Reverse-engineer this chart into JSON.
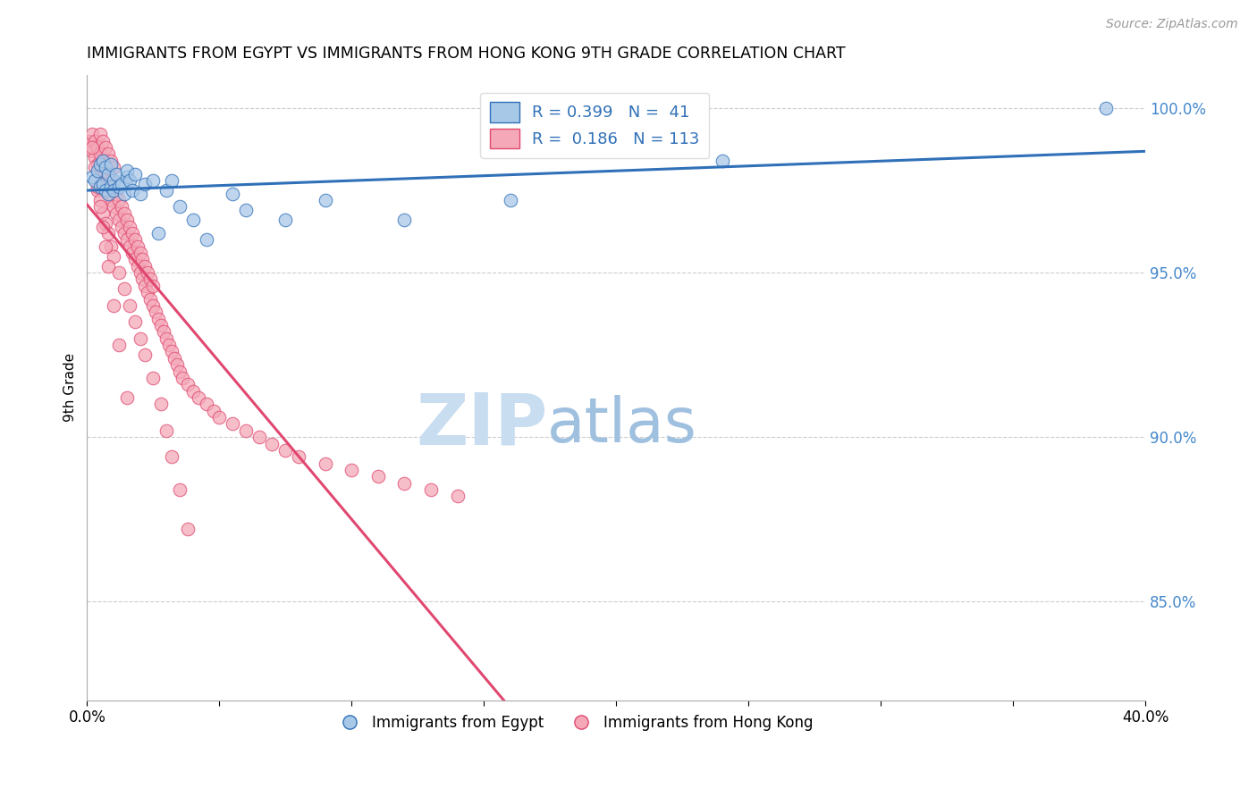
{
  "title": "IMMIGRANTS FROM EGYPT VS IMMIGRANTS FROM HONG KONG 9TH GRADE CORRELATION CHART",
  "source": "Source: ZipAtlas.com",
  "ylabel": "9th Grade",
  "ytick_labels": [
    "85.0%",
    "90.0%",
    "95.0%",
    "100.0%"
  ],
  "ytick_values": [
    0.85,
    0.9,
    0.95,
    1.0
  ],
  "xlim": [
    0.0,
    0.4
  ],
  "ylim": [
    0.82,
    1.01
  ],
  "color_egypt": "#a8c8e8",
  "color_hk": "#f4a8b8",
  "line_color_egypt": "#3070b8",
  "line_color_hk": "#e04870",
  "watermark_zip": "ZIP",
  "watermark_atlas": "atlas",
  "watermark_color_zip": "#c8ddf0",
  "watermark_color_atlas": "#a0c0e0",
  "egypt_x": [
    0.002,
    0.003,
    0.004,
    0.005,
    0.005,
    0.006,
    0.006,
    0.007,
    0.007,
    0.008,
    0.008,
    0.009,
    0.009,
    0.01,
    0.01,
    0.011,
    0.012,
    0.013,
    0.014,
    0.015,
    0.015,
    0.016,
    0.017,
    0.018,
    0.02,
    0.022,
    0.025,
    0.027,
    0.03,
    0.032,
    0.035,
    0.04,
    0.045,
    0.055,
    0.06,
    0.075,
    0.09,
    0.12,
    0.16,
    0.24,
    0.385
  ],
  "egypt_y": [
    0.979,
    0.978,
    0.981,
    0.976,
    0.983,
    0.977,
    0.984,
    0.975,
    0.982,
    0.974,
    0.98,
    0.976,
    0.983,
    0.978,
    0.975,
    0.98,
    0.976,
    0.977,
    0.974,
    0.979,
    0.981,
    0.978,
    0.975,
    0.98,
    0.974,
    0.977,
    0.978,
    0.962,
    0.975,
    0.978,
    0.97,
    0.966,
    0.96,
    0.974,
    0.969,
    0.966,
    0.972,
    0.966,
    0.972,
    0.984,
    1.0
  ],
  "hk_x": [
    0.001,
    0.002,
    0.002,
    0.003,
    0.003,
    0.004,
    0.004,
    0.005,
    0.005,
    0.005,
    0.006,
    0.006,
    0.006,
    0.007,
    0.007,
    0.007,
    0.008,
    0.008,
    0.008,
    0.009,
    0.009,
    0.009,
    0.01,
    0.01,
    0.01,
    0.011,
    0.011,
    0.012,
    0.012,
    0.013,
    0.013,
    0.014,
    0.014,
    0.015,
    0.015,
    0.016,
    0.016,
    0.017,
    0.017,
    0.018,
    0.018,
    0.019,
    0.019,
    0.02,
    0.02,
    0.021,
    0.021,
    0.022,
    0.022,
    0.023,
    0.023,
    0.024,
    0.024,
    0.025,
    0.025,
    0.026,
    0.027,
    0.028,
    0.029,
    0.03,
    0.031,
    0.032,
    0.033,
    0.034,
    0.035,
    0.036,
    0.038,
    0.04,
    0.042,
    0.045,
    0.048,
    0.05,
    0.055,
    0.06,
    0.065,
    0.07,
    0.075,
    0.08,
    0.09,
    0.1,
    0.11,
    0.12,
    0.13,
    0.14,
    0.004,
    0.005,
    0.006,
    0.007,
    0.008,
    0.009,
    0.01,
    0.012,
    0.014,
    0.016,
    0.018,
    0.02,
    0.022,
    0.025,
    0.028,
    0.03,
    0.032,
    0.035,
    0.038,
    0.002,
    0.003,
    0.004,
    0.005,
    0.006,
    0.007,
    0.008,
    0.01,
    0.012,
    0.015
  ],
  "hk_y": [
    0.99,
    0.987,
    0.992,
    0.985,
    0.99,
    0.983,
    0.988,
    0.98,
    0.986,
    0.992,
    0.978,
    0.984,
    0.99,
    0.976,
    0.982,
    0.988,
    0.974,
    0.98,
    0.986,
    0.972,
    0.978,
    0.984,
    0.97,
    0.976,
    0.982,
    0.968,
    0.974,
    0.966,
    0.972,
    0.964,
    0.97,
    0.962,
    0.968,
    0.96,
    0.966,
    0.958,
    0.964,
    0.956,
    0.962,
    0.954,
    0.96,
    0.952,
    0.958,
    0.95,
    0.956,
    0.948,
    0.954,
    0.946,
    0.952,
    0.944,
    0.95,
    0.942,
    0.948,
    0.94,
    0.946,
    0.938,
    0.936,
    0.934,
    0.932,
    0.93,
    0.928,
    0.926,
    0.924,
    0.922,
    0.92,
    0.918,
    0.916,
    0.914,
    0.912,
    0.91,
    0.908,
    0.906,
    0.904,
    0.902,
    0.9,
    0.898,
    0.896,
    0.894,
    0.892,
    0.89,
    0.888,
    0.886,
    0.884,
    0.882,
    0.975,
    0.972,
    0.968,
    0.965,
    0.962,
    0.958,
    0.955,
    0.95,
    0.945,
    0.94,
    0.935,
    0.93,
    0.925,
    0.918,
    0.91,
    0.902,
    0.894,
    0.884,
    0.872,
    0.988,
    0.982,
    0.976,
    0.97,
    0.964,
    0.958,
    0.952,
    0.94,
    0.928,
    0.912
  ]
}
